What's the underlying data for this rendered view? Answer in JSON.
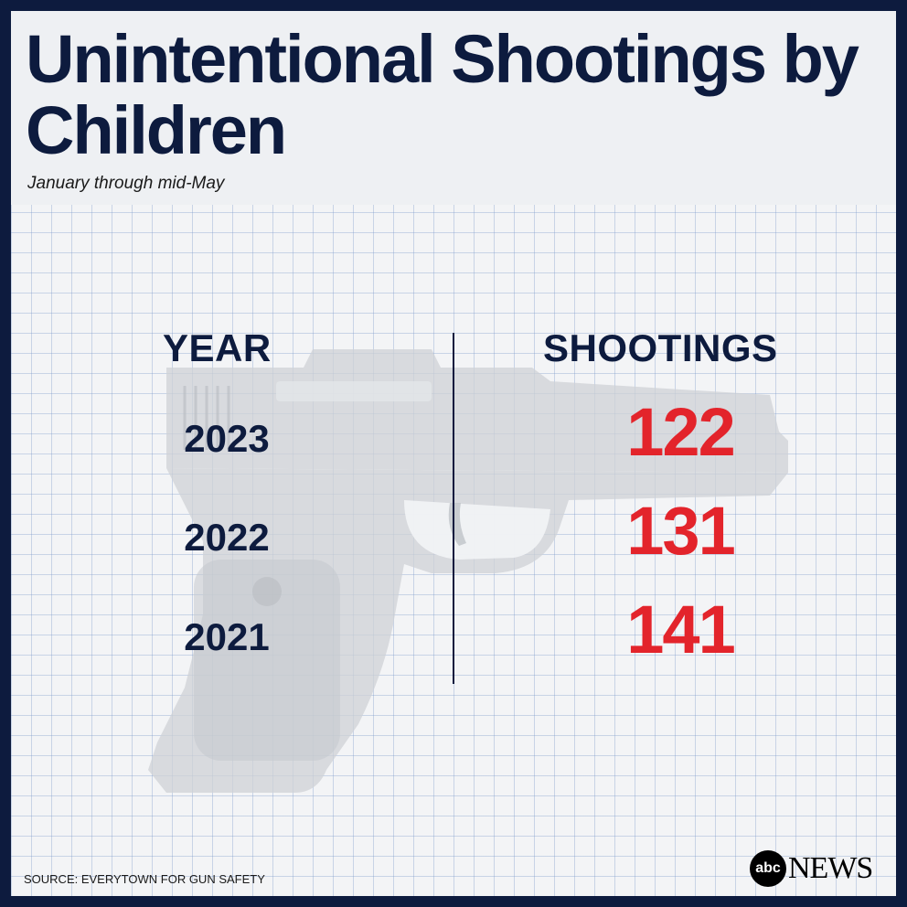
{
  "header": {
    "title": "Unintentional Shootings by Children",
    "subtitle": "January through mid-May"
  },
  "chart_data": {
    "type": "table",
    "columns": [
      "YEAR",
      "SHOOTINGS"
    ],
    "rows": [
      {
        "year": "2023",
        "value": "122"
      },
      {
        "year": "2022",
        "value": "131"
      },
      {
        "year": "2021",
        "value": "141"
      }
    ],
    "title": "Unintentional Shootings by Children",
    "subtitle": "January through mid-May"
  },
  "footer": {
    "source": "SOURCE: EVERYTOWN FOR GUN SAFETY",
    "logo_abc": "abc",
    "logo_news": "NEWS"
  },
  "colors": {
    "navy": "#0d1b3e",
    "value_red": "#e3242b",
    "background": "#f3f4f6"
  },
  "icons": {
    "background_image": "handgun-icon"
  }
}
